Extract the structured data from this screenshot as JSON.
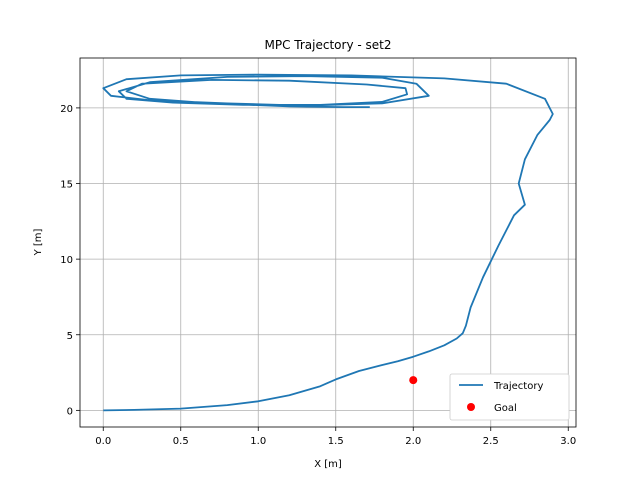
{
  "chart_data": {
    "type": "line",
    "title": "MPC Trajectory - set2",
    "xlabel": "X [m]",
    "ylabel": "Y [m]",
    "xlim": [
      -0.15,
      3.05
    ],
    "ylim": [
      -1.1,
      23.3
    ],
    "xticks": [
      0.0,
      0.5,
      1.0,
      1.5,
      2.0,
      2.5,
      3.0
    ],
    "xtick_labels": [
      "0.0",
      "0.5",
      "1.0",
      "1.5",
      "2.0",
      "2.5",
      "3.0"
    ],
    "yticks": [
      0,
      5,
      10,
      15,
      20
    ],
    "ytick_labels": [
      "0",
      "5",
      "10",
      "15",
      "20"
    ],
    "grid": true,
    "legend_position": "bottom-right",
    "series": [
      {
        "name": "Trajectory",
        "type": "line",
        "color": "#1f77b4",
        "x": [
          0.0,
          0.2,
          0.5,
          0.8,
          1.0,
          1.2,
          1.4,
          1.5,
          1.65,
          1.8,
          1.9,
          2.0,
          2.1,
          2.2,
          2.28,
          2.32,
          2.34,
          2.37,
          2.45,
          2.55,
          2.65,
          2.72,
          2.7,
          2.68,
          2.72,
          2.8,
          2.88,
          2.9,
          2.85,
          2.6,
          2.2,
          1.6,
          1.0,
          0.5,
          0.15,
          0.0,
          0.05,
          0.3,
          0.8,
          1.3,
          1.8,
          2.1,
          2.02,
          1.8,
          1.3,
          0.8,
          0.3,
          0.1,
          0.15,
          0.45,
          0.9,
          1.4,
          1.8,
          1.96,
          1.95,
          1.7,
          1.2,
          0.7,
          0.25,
          0.15,
          0.3,
          0.7,
          1.2,
          1.55,
          1.72
        ],
        "y": [
          0.0,
          0.03,
          0.12,
          0.35,
          0.6,
          1.0,
          1.6,
          2.05,
          2.6,
          3.0,
          3.25,
          3.55,
          3.9,
          4.3,
          4.75,
          5.1,
          5.6,
          6.8,
          8.8,
          10.9,
          12.9,
          13.6,
          14.3,
          15.0,
          16.6,
          18.2,
          19.2,
          19.6,
          20.6,
          21.6,
          21.95,
          22.15,
          22.2,
          22.15,
          21.9,
          21.3,
          20.8,
          20.5,
          20.3,
          20.15,
          20.3,
          20.8,
          21.6,
          22.0,
          22.1,
          22.05,
          21.7,
          21.1,
          20.6,
          20.35,
          20.2,
          20.2,
          20.4,
          20.9,
          21.3,
          21.55,
          21.8,
          21.85,
          21.6,
          21.1,
          20.6,
          20.3,
          20.1,
          20.05,
          20.05
        ]
      },
      {
        "name": "Goal",
        "type": "scatter",
        "color": "#ff0000",
        "x": [
          2.0
        ],
        "y": [
          2.0
        ]
      }
    ]
  }
}
